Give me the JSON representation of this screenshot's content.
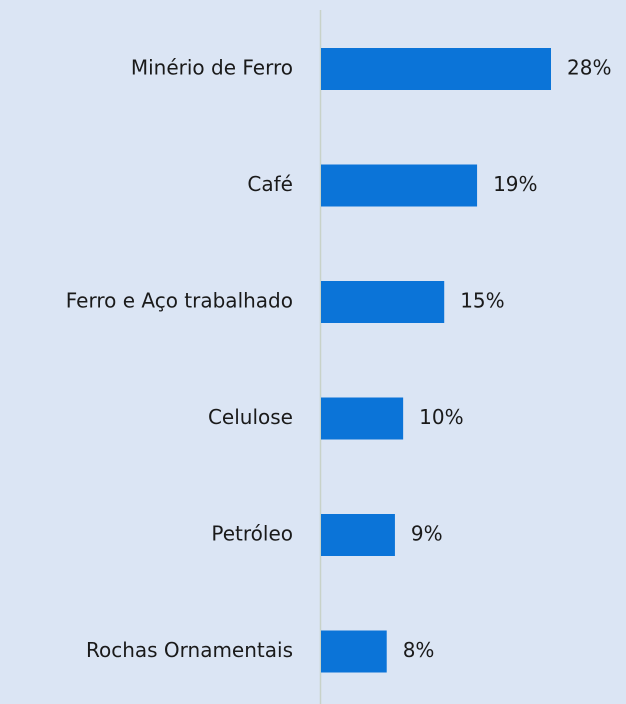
{
  "chart_data": {
    "type": "bar",
    "orientation": "horizontal",
    "categories": [
      "Minério de Ferro",
      "Café",
      "Ferro e Aço trabalhado",
      "Celulose",
      "Petróleo",
      "Rochas Ornamentais"
    ],
    "values": [
      28,
      19,
      15,
      10,
      9,
      8
    ],
    "value_labels": [
      "28%",
      "19%",
      "15%",
      "10%",
      "9%",
      "8%"
    ],
    "color": "#0b74d8"
  }
}
